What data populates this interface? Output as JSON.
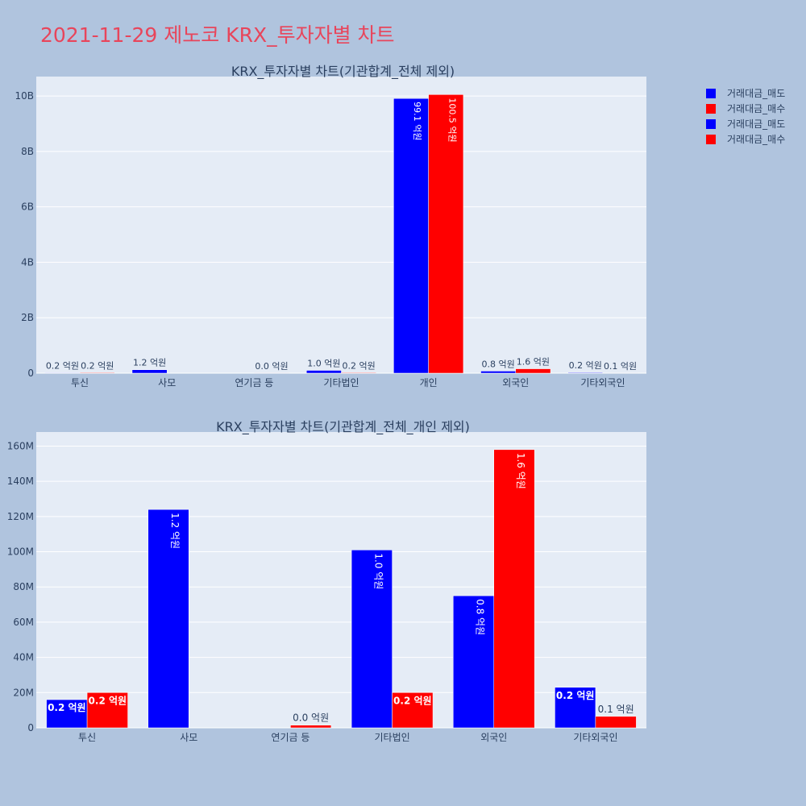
{
  "page_title": "2021-11-29 제노코 KRX_투자자별 차트",
  "legend": [
    {
      "label": "거래대금_매도",
      "color": "#0000ff"
    },
    {
      "label": "거래대금_매수",
      "color": "#ff0000"
    },
    {
      "label": "거래대금_매도",
      "color": "#0000ff"
    },
    {
      "label": "거래대금_매수",
      "color": "#ff0000"
    }
  ],
  "chart_data": [
    {
      "type": "bar",
      "title": "KRX_투자자별 차트(기관합계_전체 제외)",
      "categories": [
        "투신",
        "사모",
        "연기금 등",
        "기타법인",
        "개인",
        "외국인",
        "기타외국인"
      ],
      "ylim": [
        0,
        10700000000
      ],
      "yticks": [
        0,
        2000000000,
        4000000000,
        6000000000,
        8000000000,
        10000000000
      ],
      "ytick_labels": [
        "0",
        "2B",
        "4B",
        "6B",
        "8B",
        "10B"
      ],
      "series": [
        {
          "name": "거래대금_매도",
          "color": "#0000ff",
          "values": [
            16000000,
            124000000,
            null,
            101000000,
            9910000000,
            75000000,
            23000000
          ],
          "labels": [
            "0.2 억원",
            "1.2 억원",
            "",
            "1.0 억원",
            "99.1 억원",
            "0.8 억원",
            "0.2 억원"
          ]
        },
        {
          "name": "거래대금_매수",
          "color": "#ff0000",
          "values": [
            20000000,
            null,
            1500000,
            20000000,
            10050000000,
            158000000,
            6500000
          ],
          "labels": [
            "0.2 억원",
            "",
            "0.0 억원",
            "0.2 억원",
            "100.5 억원",
            "1.6 억원",
            "0.1 억원"
          ]
        }
      ]
    },
    {
      "type": "bar",
      "title": "KRX_투자자별 차트(기관합계_전체_개인 제외)",
      "categories": [
        "투신",
        "사모",
        "연기금 등",
        "기타법인",
        "외국인",
        "기타외국인"
      ],
      "ylim": [
        0,
        168000000
      ],
      "yticks": [
        0,
        20000000,
        40000000,
        60000000,
        80000000,
        100000000,
        120000000,
        140000000,
        160000000
      ],
      "ytick_labels": [
        "0",
        "20M",
        "40M",
        "60M",
        "80M",
        "100M",
        "120M",
        "140M",
        "160M"
      ],
      "series": [
        {
          "name": "거래대금_매도",
          "color": "#0000ff",
          "values": [
            16000000,
            124000000,
            null,
            101000000,
            75000000,
            23000000
          ],
          "labels": [
            "0.2 억원",
            "1.2 억원",
            "",
            "1.0 억원",
            "0.8 억원",
            "0.2 억원"
          ]
        },
        {
          "name": "거래대금_매수",
          "color": "#ff0000",
          "values": [
            20000000,
            null,
            1500000,
            20000000,
            158000000,
            6500000
          ],
          "labels": [
            "0.2 억원",
            "",
            "0.0 억원",
            "0.2 억원",
            "1.6 억원",
            "0.1 억원"
          ]
        }
      ]
    }
  ]
}
